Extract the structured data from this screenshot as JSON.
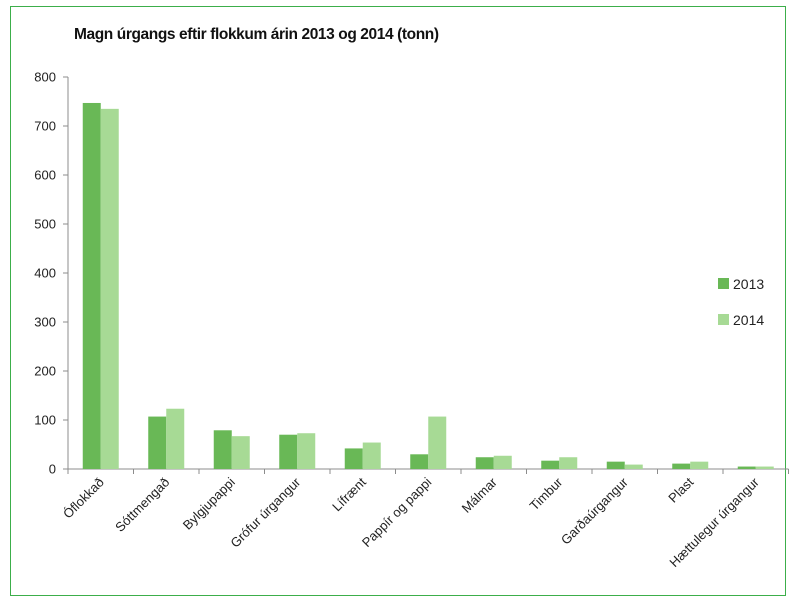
{
  "chart_data": {
    "type": "bar",
    "title": "Magn úrgangs eftir flokkum árin 2013 og 2014 (tonn)",
    "xlabel": "",
    "ylabel": "",
    "ylim": [
      0,
      800
    ],
    "yticks": [
      0,
      100,
      200,
      300,
      400,
      500,
      600,
      700,
      800
    ],
    "grid": false,
    "legend_position": "right",
    "categories": [
      "Óflokkað",
      "Sóttmengað",
      "Bylgjupappi",
      "Grófur úrgangur",
      "Lífrænt",
      "Pappír og pappi",
      "Málmar",
      "Timbur",
      "Garðaúrgangur",
      "Plast",
      "Hættulegur úrgangur"
    ],
    "series": [
      {
        "name": "2013",
        "color": "#69b856",
        "values": [
          747,
          107,
          79,
          70,
          42,
          30,
          24,
          17,
          15,
          11,
          5
        ]
      },
      {
        "name": "2014",
        "color": "#a7da95",
        "values": [
          735,
          123,
          67,
          73,
          54,
          107,
          27,
          24,
          9,
          15,
          5
        ]
      }
    ]
  }
}
